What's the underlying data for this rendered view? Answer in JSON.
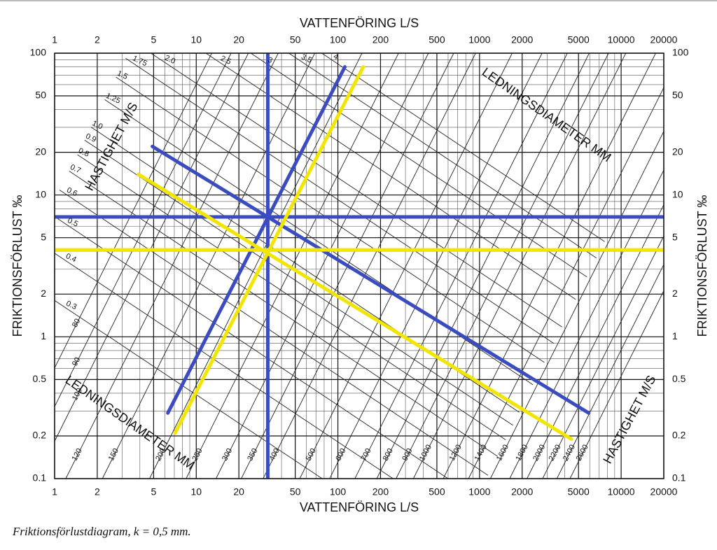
{
  "chart_data": {
    "type": "nomogram",
    "x_axis_label": "VATTENFÖRING L/S",
    "y_axis_label": "FRIKTIONSFÖRLUST ‰",
    "diameter_label": "LEDNINGSDIAMETER MM",
    "velocity_label": "HASTIGHET M/S",
    "caption": "Friktionsförlustdiagram, k = 0,5 mm.",
    "xscale": "log",
    "yscale": "log",
    "xlim": [
      1,
      20000
    ],
    "ylim": [
      0.1,
      100
    ],
    "xticks": [
      1,
      2,
      5,
      10,
      20,
      50,
      100,
      200,
      500,
      1000,
      2000,
      5000,
      10000,
      20000
    ],
    "yticks": [
      0.1,
      0.2,
      0.5,
      1,
      2,
      5,
      10,
      20,
      50,
      100
    ],
    "grid": true,
    "diameters": [
      80,
      90,
      100,
      120,
      150,
      200,
      250,
      300,
      350,
      400,
      500,
      600,
      700,
      800,
      900,
      1000,
      1200,
      1400,
      1600,
      1800,
      2000,
      2200,
      2400,
      2600
    ],
    "velocities": [
      0.3,
      0.4,
      0.5,
      0.6,
      0.7,
      0.8,
      0.9,
      {
        "value": 1,
        "label": "1.0"
      },
      1.25,
      1.5,
      1.75,
      {
        "value": 2,
        "label": "2.0"
      },
      2.5,
      3,
      3.5,
      4
    ],
    "overlay_lines": [
      {
        "color": "#3b4cc0",
        "x": [
          32,
          32
        ],
        "y": [
          0.1,
          100
        ]
      },
      {
        "color": "#3b4cc0",
        "x": [
          1,
          20000
        ],
        "y": [
          7,
          7
        ]
      },
      {
        "color": "#3b4cc0",
        "x": [
          4.9,
          5900
        ],
        "y": [
          22,
          0.29
        ]
      },
      {
        "color": "#3b4cc0",
        "x": [
          6.3,
          112
        ],
        "y": [
          0.29,
          80
        ]
      },
      {
        "color": "#f2e600",
        "x": [
          1,
          20000
        ],
        "y": [
          4.1,
          4.1
        ]
      },
      {
        "color": "#f2e600",
        "x": [
          3.9,
          4450
        ],
        "y": [
          14,
          0.19
        ]
      },
      {
        "color": "#f2e600",
        "x": [
          7.1,
          151
        ],
        "y": [
          0.21,
          80
        ]
      }
    ]
  }
}
